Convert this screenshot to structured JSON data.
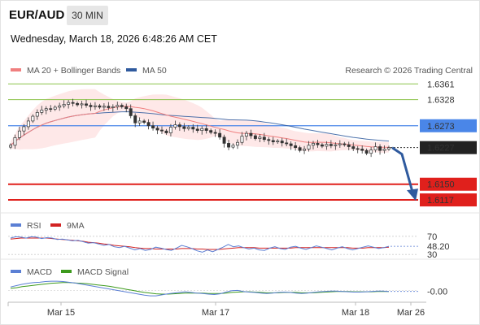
{
  "header": {
    "pair": "EUR/AUD",
    "timeframe": "30 MIN",
    "datetime": "Wednesday, March 18, 2026 6:48:26 AM CET",
    "research": "Research © 2026 Trading Central"
  },
  "legend": {
    "ma20": "MA 20 + Bollinger Bands",
    "ma50": "MA 50",
    "rsi": "RSI",
    "rsi_ma": "9MA",
    "macd": "MACD",
    "macd_signal": "MACD Signal"
  },
  "colors": {
    "price": "#333333",
    "ma20": "#f07f7f",
    "band_fill": "#fde0e0",
    "ma50": "#2f5a9e",
    "resistance": "#8bc34a",
    "pivot": "#4a86e8",
    "support": "#e0201c",
    "arrow": "#2f5a9e",
    "rsi": "#5b7fd4",
    "rsi_ma": "#d22222",
    "macd": "#5b7fd4",
    "macd_signal": "#3d9a1d"
  },
  "chart_data": [
    {
      "type": "line",
      "panel": "price",
      "x_labels": [
        "Mar 15",
        "Mar 17",
        "Mar 18",
        "Mar 26"
      ],
      "ylim": [
        1.61,
        1.637
      ],
      "series": [
        {
          "name": "EUR/AUD",
          "values": [
            1.6232,
            1.6248,
            1.6262,
            1.6271,
            1.6283,
            1.6293,
            1.6301,
            1.6306,
            1.6309,
            1.6308,
            1.6312,
            1.6315,
            1.6318,
            1.6322,
            1.632,
            1.6317,
            1.6319,
            1.6316,
            1.6313,
            1.6315,
            1.6312,
            1.6314,
            1.6311,
            1.6313,
            1.6316,
            1.6313,
            1.6309,
            1.6294,
            1.6279,
            1.6283,
            1.628,
            1.6273,
            1.6268,
            1.6264,
            1.6262,
            1.6258,
            1.627,
            1.6275,
            1.6271,
            1.6267,
            1.627,
            1.6266,
            1.6263,
            1.6267,
            1.6263,
            1.6259,
            1.6257,
            1.6249,
            1.6236,
            1.6228,
            1.6232,
            1.6238,
            1.6251,
            1.6257,
            1.6252,
            1.6246,
            1.6249,
            1.6244,
            1.6242,
            1.6239,
            1.6241,
            1.6237,
            1.6235,
            1.6231,
            1.6227,
            1.6221,
            1.6224,
            1.6232,
            1.6236,
            1.6233,
            1.623,
            1.6234,
            1.6231,
            1.6233,
            1.6235,
            1.6233,
            1.6229,
            1.6225,
            1.6224,
            1.6221,
            1.6215,
            1.6222,
            1.6229,
            1.6221,
            1.6224,
            1.6227
          ]
        },
        {
          "name": "MA 20",
          "values": []
        },
        {
          "name": "MA 50",
          "values": []
        }
      ],
      "levels": [
        {
          "value": 1.6361,
          "label": "1.6361",
          "kind": "resistance"
        },
        {
          "value": 1.6328,
          "label": "1.6328",
          "kind": "resistance"
        },
        {
          "value": 1.6273,
          "label": "1.6273",
          "kind": "pivot"
        },
        {
          "value": 1.6227,
          "label": "1.6227",
          "kind": "last"
        },
        {
          "value": 1.615,
          "label": "1.6150",
          "kind": "support"
        },
        {
          "value": 1.6117,
          "label": "1.6117",
          "kind": "support"
        }
      ],
      "forecast": [
        1.6227,
        1.6117
      ]
    },
    {
      "type": "line",
      "panel": "rsi",
      "ylim": [
        25,
        75
      ],
      "ticks": [
        "70",
        "30"
      ],
      "last_value_label": "48.20",
      "series": [
        {
          "name": "RSI",
          "values": [
            66,
            69,
            68,
            66,
            69,
            68,
            65,
            67,
            66,
            63,
            64,
            62,
            60,
            61,
            58,
            55,
            56,
            53,
            50,
            52,
            47,
            45,
            48,
            44,
            40,
            43,
            39,
            41,
            46,
            44,
            41,
            39,
            44,
            50,
            47,
            43,
            38,
            35,
            40,
            36,
            41,
            46,
            52,
            47,
            49,
            45,
            42,
            44,
            40,
            39,
            44,
            47,
            43,
            41,
            46,
            48,
            44,
            41,
            45,
            49,
            46,
            43,
            40,
            44,
            47,
            43,
            40,
            43,
            46,
            49,
            46,
            43,
            45,
            48
          ]
        },
        {
          "name": "9MA",
          "values": [
            64,
            65,
            66,
            66,
            66,
            66,
            66,
            66,
            65,
            64,
            63,
            62,
            61,
            60,
            59,
            57,
            56,
            55,
            53,
            52,
            50,
            49,
            48,
            47,
            45,
            44,
            43,
            43,
            42,
            42,
            42,
            42,
            42,
            43,
            43,
            43,
            42,
            42,
            41,
            41,
            41,
            42,
            43,
            44,
            45,
            45,
            45,
            45,
            44,
            44,
            44,
            44,
            44,
            44,
            44,
            45,
            45,
            45,
            45,
            45,
            45,
            45,
            45,
            45,
            45,
            45,
            44,
            44,
            44,
            45,
            45,
            45,
            45,
            46
          ]
        }
      ]
    },
    {
      "type": "line",
      "panel": "macd",
      "ylim": [
        -0.003,
        0.0032
      ],
      "last_value_label": "-0.00",
      "series": [
        {
          "name": "MACD",
          "values": [
            0.001,
            0.0014,
            0.0018,
            0.0021,
            0.0023,
            0.0024,
            0.0026,
            0.0027,
            0.0027,
            0.0026,
            0.0024,
            0.0022,
            0.0019,
            0.0016,
            0.0013,
            0.001,
            0.0007,
            0.0004,
            0.0001,
            -0.0002,
            -0.0005,
            -0.0008,
            -0.0011,
            -0.0014,
            -0.0016,
            -0.0016,
            -0.0013,
            -0.001,
            -0.0008,
            -0.0006,
            -0.0004,
            -0.0006,
            -0.0008,
            -0.0009,
            -0.0011,
            -0.0012,
            -0.001,
            -0.0005,
            -0.0001,
            0.0,
            -0.0003,
            -0.0005,
            -0.0006,
            -0.0008,
            -0.0009,
            -0.0008,
            -0.0006,
            -0.0005,
            -0.0006,
            -0.0008,
            -0.0009,
            -0.0008,
            -0.0006,
            -0.0004,
            -0.0003,
            -0.0002,
            -0.0002,
            -0.0003,
            -0.0004,
            -0.0005,
            -0.0005,
            -0.0004,
            -0.0003,
            -0.0002,
            -0.0002,
            -0.0003
          ]
        },
        {
          "name": "MACD Signal",
          "values": [
            0.0006,
            0.0008,
            0.0011,
            0.0013,
            0.0015,
            0.0017,
            0.0019,
            0.0021,
            0.0022,
            0.0023,
            0.0023,
            0.0022,
            0.0021,
            0.002,
            0.0018,
            0.0016,
            0.0014,
            0.0012,
            0.0009,
            0.0006,
            0.0003,
            0.0,
            -0.0003,
            -0.0006,
            -0.0008,
            -0.001,
            -0.0011,
            -0.0011,
            -0.001,
            -0.0009,
            -0.0008,
            -0.0008,
            -0.0008,
            -0.0008,
            -0.0009,
            -0.0009,
            -0.0009,
            -0.0008,
            -0.0006,
            -0.0005,
            -0.0004,
            -0.0004,
            -0.0005,
            -0.0006,
            -0.0007,
            -0.0007,
            -0.0007,
            -0.0006,
            -0.0006,
            -0.0006,
            -0.0007,
            -0.0007,
            -0.0007,
            -0.0006,
            -0.0005,
            -0.0004,
            -0.0003,
            -0.0003,
            -0.0003,
            -0.0004,
            -0.0004,
            -0.0004,
            -0.0004,
            -0.0003,
            -0.0003,
            -0.0003
          ]
        }
      ]
    }
  ]
}
